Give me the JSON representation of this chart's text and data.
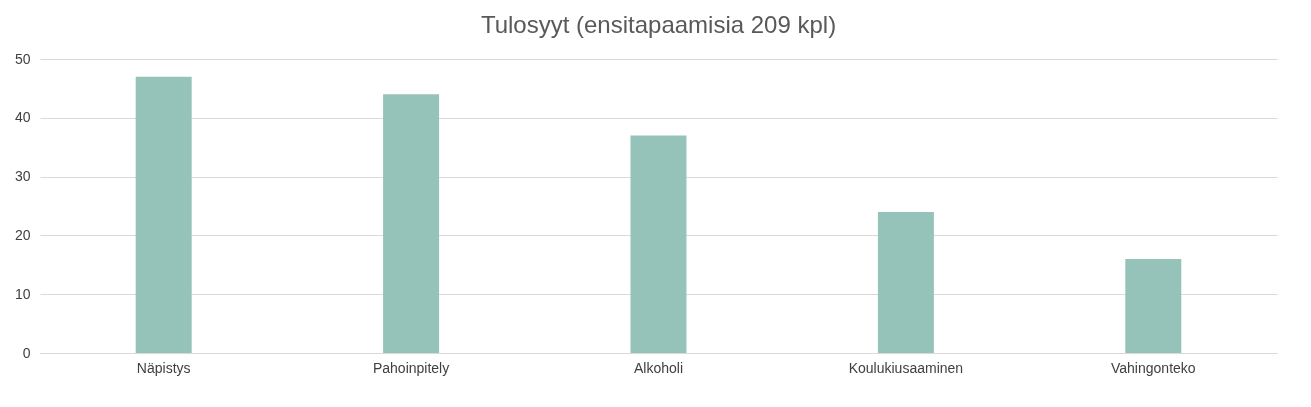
{
  "chart_data": {
    "type": "bar",
    "title": "Tulosyyt (ensitapaamisia 209 kpl)",
    "categories": [
      "Näpistys",
      "Pahoinpitely",
      "Alkoholi",
      "Koulukiusaaminen",
      "Vahingonteko"
    ],
    "values": [
      47,
      44,
      37,
      24,
      16
    ],
    "color": "#96c3b9",
    "ylim": [
      0,
      50
    ],
    "yticks": [
      0,
      10,
      20,
      30,
      40,
      50
    ],
    "grid": "y"
  }
}
